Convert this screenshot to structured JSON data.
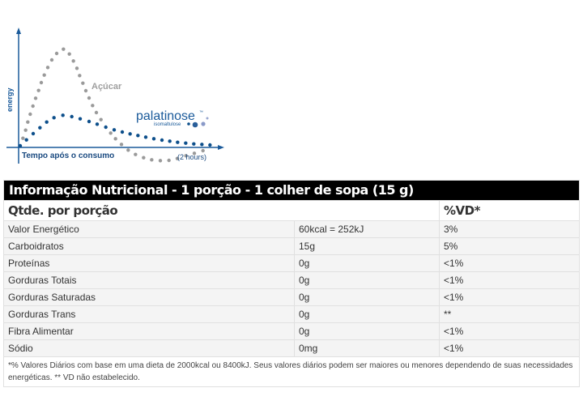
{
  "graph": {
    "y_label": "energy",
    "x_label": "Tempo após o consumo",
    "x_end_label": "(2 hours)",
    "sugar_label": "Açúcar",
    "brand": "palatinose",
    "brand_tm": "™",
    "brand_sub": "isomaltulose",
    "colors": {
      "sugar": "#9a9a9a",
      "palatinose": "#0d4f8b",
      "axis": "#1a5a9a"
    }
  },
  "table": {
    "title": "Informação Nutricional - 1 porção - 1 colher de sopa (15 g)",
    "header": {
      "qty": "Qtde. por porção",
      "vd": "%VD*"
    },
    "rows": [
      {
        "name": "Valor Energético",
        "amount": "60kcal = 252kJ",
        "vd": "3%"
      },
      {
        "name": "Carboidratos",
        "amount": "15g",
        "vd": "5%"
      },
      {
        "name": "Proteínas",
        "amount": "0g",
        "vd": "<1%"
      },
      {
        "name": "Gorduras Totais",
        "amount": "0g",
        "vd": "<1%"
      },
      {
        "name": "Gorduras Saturadas",
        "amount": "0g",
        "vd": "<1%"
      },
      {
        "name": "Gorduras Trans",
        "amount": "0g",
        "vd": "**"
      },
      {
        "name": "Fibra Alimentar",
        "amount": "0g",
        "vd": "<1%"
      },
      {
        "name": "Sódio",
        "amount": "0mg",
        "vd": "<1%"
      }
    ],
    "footnote": "*% Valores Diários com base em uma dieta de 2000kcal ou 8400kJ. Seus valores diários podem ser maiores ou menores dependendo de suas necessidades energéticas. ** VD não estabelecido."
  }
}
